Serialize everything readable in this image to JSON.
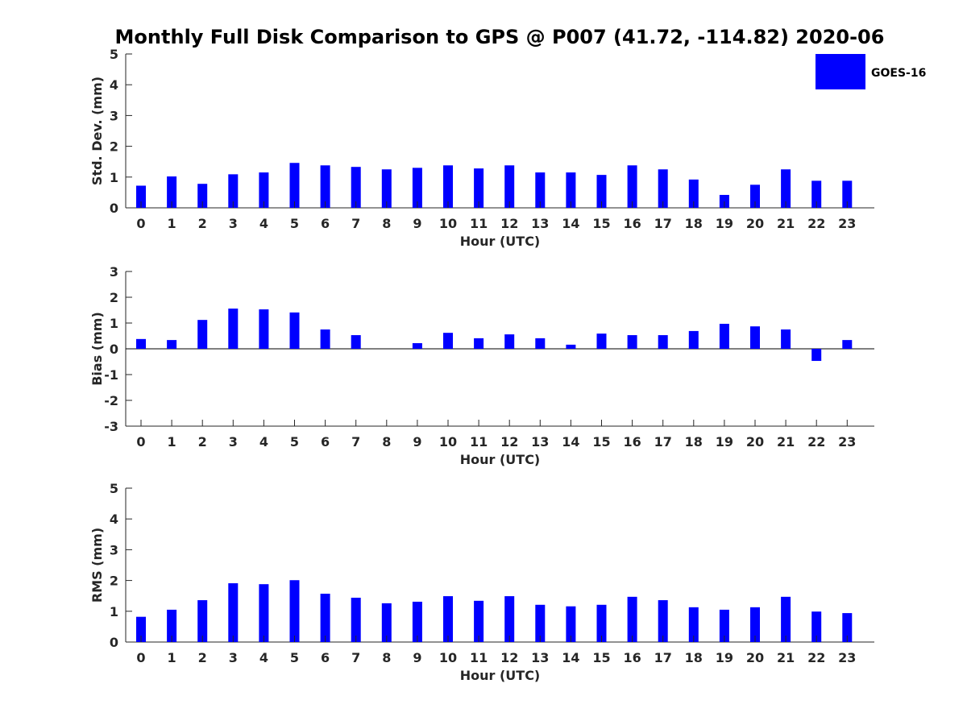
{
  "title": "Monthly Full Disk Comparison to GPS @ P007 (41.72, -114.82) 2020-06",
  "legend": {
    "label": "GOES-16",
    "color": "#0000ff"
  },
  "chart_data": [
    {
      "type": "bar",
      "series_name": "GOES-16",
      "categories": [
        "0",
        "1",
        "2",
        "3",
        "4",
        "5",
        "6",
        "7",
        "8",
        "9",
        "10",
        "11",
        "12",
        "13",
        "14",
        "15",
        "16",
        "17",
        "18",
        "19",
        "20",
        "21",
        "22",
        "23"
      ],
      "values": [
        0.72,
        1.02,
        0.78,
        1.09,
        1.15,
        1.46,
        1.38,
        1.33,
        1.25,
        1.3,
        1.38,
        1.28,
        1.38,
        1.15,
        1.15,
        1.07,
        1.38,
        1.25,
        0.92,
        0.42,
        0.75,
        1.25,
        0.88,
        0.88
      ],
      "xlabel": "Hour (UTC)",
      "ylabel": "Std. Dev. (mm)",
      "ylim": [
        0,
        5
      ],
      "yticks": [
        "0",
        "1",
        "2",
        "3",
        "4",
        "5"
      ]
    },
    {
      "type": "bar",
      "series_name": "GOES-16",
      "categories": [
        "0",
        "1",
        "2",
        "3",
        "4",
        "5",
        "6",
        "7",
        "8",
        "9",
        "10",
        "11",
        "12",
        "13",
        "14",
        "15",
        "16",
        "17",
        "18",
        "19",
        "20",
        "21",
        "22",
        "23"
      ],
      "values": [
        0.38,
        0.34,
        1.12,
        1.56,
        1.53,
        1.41,
        0.75,
        0.53,
        0.0,
        0.22,
        0.62,
        0.41,
        0.56,
        0.41,
        0.16,
        0.59,
        0.53,
        0.53,
        0.69,
        0.97,
        0.87,
        0.75,
        -0.47,
        0.34
      ],
      "xlabel": "Hour (UTC)",
      "ylabel": "Bias (mm)",
      "ylim": [
        -3,
        3
      ],
      "yticks": [
        "-3",
        "-2",
        "-1",
        "0",
        "1",
        "2",
        "3"
      ]
    },
    {
      "type": "bar",
      "series_name": "GOES-16",
      "categories": [
        "0",
        "1",
        "2",
        "3",
        "4",
        "5",
        "6",
        "7",
        "8",
        "9",
        "10",
        "11",
        "12",
        "13",
        "14",
        "15",
        "16",
        "17",
        "18",
        "19",
        "20",
        "21",
        "22",
        "23"
      ],
      "values": [
        0.82,
        1.05,
        1.36,
        1.91,
        1.88,
        2.01,
        1.57,
        1.44,
        1.26,
        1.31,
        1.49,
        1.34,
        1.49,
        1.21,
        1.16,
        1.21,
        1.47,
        1.36,
        1.13,
        1.05,
        1.13,
        1.47,
        0.99,
        0.94
      ],
      "xlabel": "Hour (UTC)",
      "ylabel": "RMS (mm)",
      "ylim": [
        0,
        5
      ],
      "yticks": [
        "0",
        "1",
        "2",
        "3",
        "4",
        "5"
      ]
    }
  ]
}
